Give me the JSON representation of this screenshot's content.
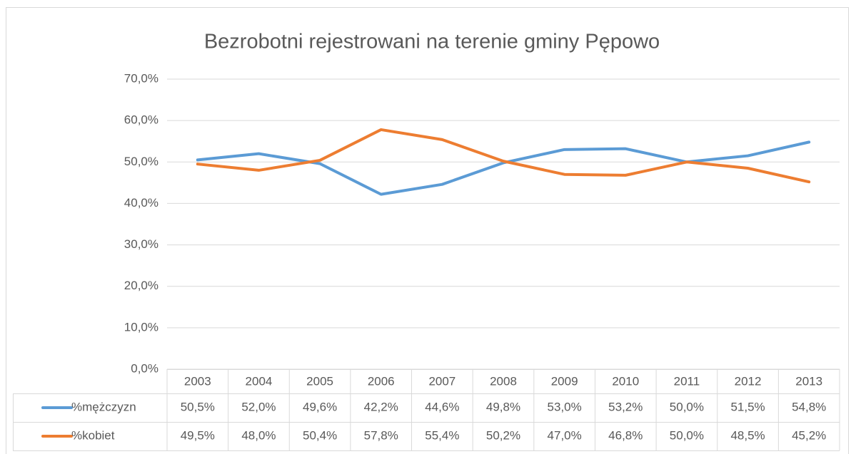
{
  "chart_data": {
    "type": "line",
    "title": "Bezrobotni rejestrowani na terenie gminy Pępowo",
    "categories": [
      "2003",
      "2004",
      "2005",
      "2006",
      "2007",
      "2008",
      "2009",
      "2010",
      "2011",
      "2012",
      "2013"
    ],
    "series": [
      {
        "name": "%mężczyzn",
        "color": "#5b9bd5",
        "values": [
          50.5,
          52.0,
          49.6,
          42.2,
          44.6,
          49.8,
          53.0,
          53.2,
          50.0,
          51.5,
          54.8
        ],
        "value_labels": [
          "50,5%",
          "52,0%",
          "49,6%",
          "42,2%",
          "44,6%",
          "49,8%",
          "53,0%",
          "53,2%",
          "50,0%",
          "51,5%",
          "54,8%"
        ]
      },
      {
        "name": "%kobiet",
        "color": "#ed7d31",
        "values": [
          49.5,
          48.0,
          50.4,
          57.8,
          55.4,
          50.2,
          47.0,
          46.8,
          50.0,
          48.5,
          45.2
        ],
        "value_labels": [
          "49,5%",
          "48,0%",
          "50,4%",
          "57,8%",
          "55,4%",
          "50,2%",
          "47,0%",
          "46,8%",
          "50,0%",
          "48,5%",
          "45,2%"
        ]
      }
    ],
    "ylim": [
      0,
      70
    ],
    "yticks": [
      {
        "value": 0,
        "label": "0,0%"
      },
      {
        "value": 10,
        "label": "10,0%"
      },
      {
        "value": 20,
        "label": "20,0%"
      },
      {
        "value": 30,
        "label": "30,0%"
      },
      {
        "value": 40,
        "label": "40,0%"
      },
      {
        "value": 50,
        "label": "50,0%"
      },
      {
        "value": 60,
        "label": "60,0%"
      },
      {
        "value": 70,
        "label": "70,0%"
      }
    ],
    "grid": true
  }
}
